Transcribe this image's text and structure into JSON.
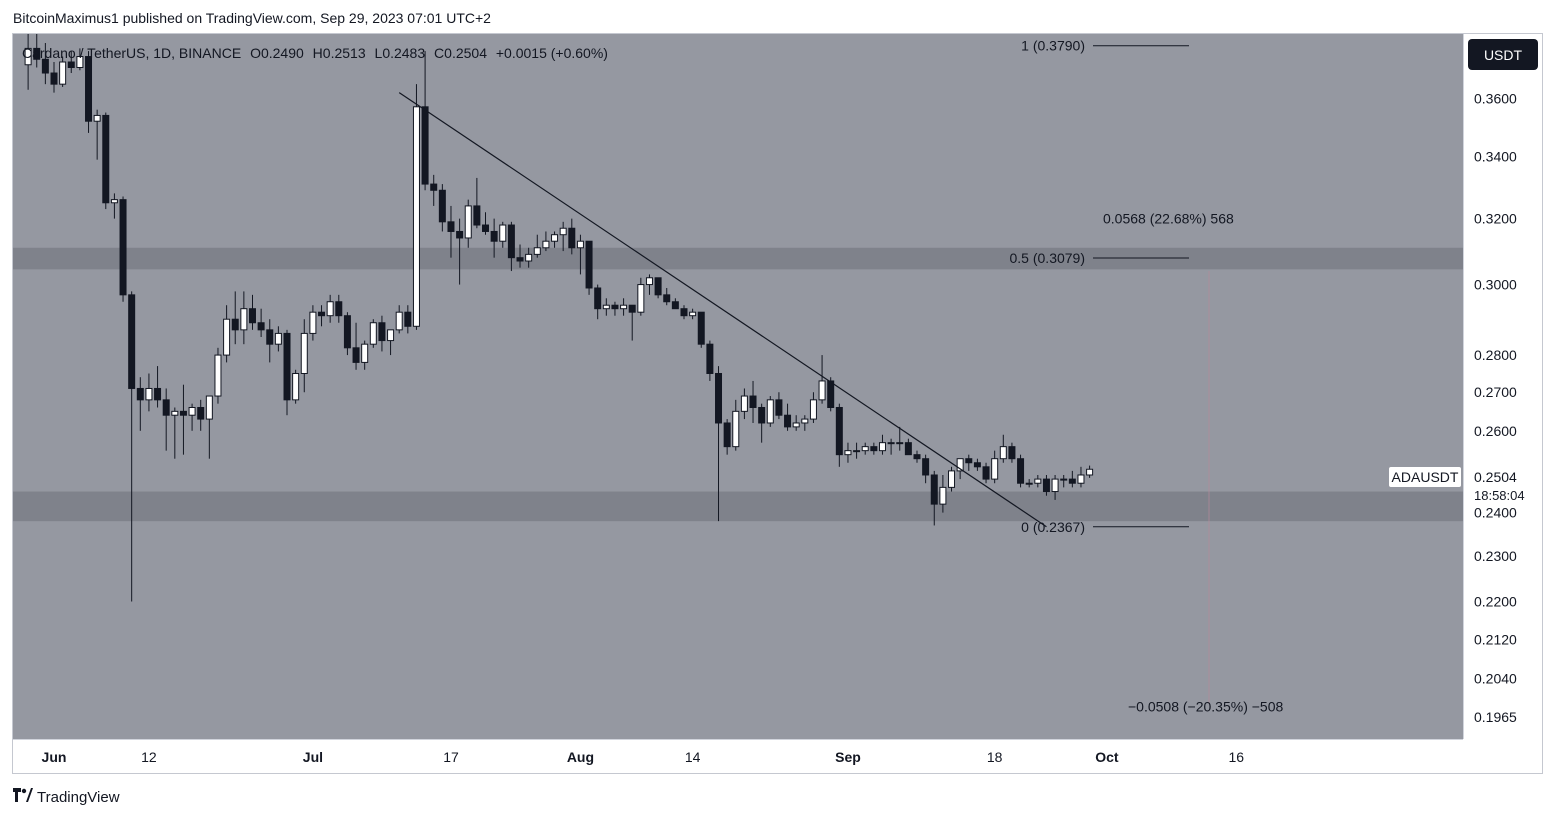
{
  "header": {
    "publisher_line": "BitcoinMaximus1 published on TradingView.com, Sep 29, 2023 07:01 UTC+2"
  },
  "legend": {
    "symbol": "Cardano / TetherUS, 1D, BINANCE",
    "open_label": "O",
    "open": "0.2490",
    "high_label": "H",
    "high": "0.2513",
    "low_label": "L",
    "low": "0.2483",
    "close_label": "C",
    "close": "0.2504",
    "change": "+0.0015 (+0.60%)"
  },
  "currency_button": "USDT",
  "last_price": {
    "symbol": "ADAUSDT",
    "value": "0.2504",
    "countdown": "18:58:04"
  },
  "footer": {
    "brand": "TradingView",
    "logo_icon": "tradingview-logo-icon"
  },
  "colors": {
    "plot_bg": "#9598a1",
    "bull": "#ffffff",
    "bear": "#131722",
    "zone": "#7b7e87"
  },
  "chart_data": {
    "type": "candlestick",
    "title": "Cardano / TetherUS, 1D, BINANCE",
    "xlabel": "",
    "ylabel": "",
    "ylim": [
      0.1942,
      0.38
    ],
    "y_scale": "log",
    "y_ticks": [
      "0.3600",
      "0.3400",
      "0.3200",
      "0.3000",
      "0.2800",
      "0.2700",
      "0.2600",
      "0.2400",
      "0.2300",
      "0.2200",
      "0.2120",
      "0.2040",
      "0.1965"
    ],
    "x_ticks": [
      {
        "label": "Jun",
        "date": "2023-06-01"
      },
      {
        "label": "12",
        "date": "2023-06-12"
      },
      {
        "label": "Jul",
        "date": "2023-07-01"
      },
      {
        "label": "17",
        "date": "2023-07-17"
      },
      {
        "label": "Aug",
        "date": "2023-08-01"
      },
      {
        "label": "14",
        "date": "2023-08-14"
      },
      {
        "label": "Sep",
        "date": "2023-09-01"
      },
      {
        "label": "18",
        "date": "2023-09-18"
      },
      {
        "label": "Oct",
        "date": "2023-10-01"
      },
      {
        "label": "16",
        "date": "2023-10-16"
      }
    ],
    "support_zones": [
      {
        "low": 0.3045,
        "high": 0.311
      },
      {
        "low": 0.238,
        "high": 0.245
      }
    ],
    "trendline": {
      "start": {
        "date": "2023-07-11",
        "price": 0.362
      },
      "end": {
        "date": "2023-09-24",
        "price": 0.2367
      }
    },
    "fib_levels": [
      {
        "label": "1 (0.3790)",
        "price": 0.379
      },
      {
        "label": "0.5 (0.3079)",
        "price": 0.3079
      },
      {
        "label": "0 (0.2367)",
        "price": 0.2367
      }
    ],
    "measurements": [
      {
        "label": "0.0568 (22.68%) 568",
        "price": 0.32
      },
      {
        "label": "−0.0508 (−20.35%) −508",
        "price": 0.1985
      }
    ],
    "candles": [
      [
        "2023-05-29",
        0.372,
        0.384,
        0.363,
        0.378
      ],
      [
        "2023-05-30",
        0.378,
        0.384,
        0.371,
        0.374
      ],
      [
        "2023-05-31",
        0.374,
        0.38,
        0.365,
        0.369
      ],
      [
        "2023-06-01",
        0.369,
        0.373,
        0.362,
        0.365
      ],
      [
        "2023-06-02",
        0.365,
        0.375,
        0.364,
        0.373
      ],
      [
        "2023-06-03",
        0.373,
        0.377,
        0.369,
        0.371
      ],
      [
        "2023-06-04",
        0.371,
        0.378,
        0.37,
        0.375
      ],
      [
        "2023-06-05",
        0.375,
        0.377,
        0.348,
        0.352
      ],
      [
        "2023-06-06",
        0.352,
        0.356,
        0.339,
        0.354
      ],
      [
        "2023-06-07",
        0.354,
        0.355,
        0.323,
        0.325
      ],
      [
        "2023-06-08",
        0.325,
        0.328,
        0.32,
        0.326
      ],
      [
        "2023-06-09",
        0.326,
        0.327,
        0.295,
        0.297
      ],
      [
        "2023-06-10",
        0.297,
        0.298,
        0.22,
        0.271
      ],
      [
        "2023-06-11",
        0.271,
        0.274,
        0.26,
        0.268
      ],
      [
        "2023-06-12",
        0.268,
        0.275,
        0.265,
        0.271
      ],
      [
        "2023-06-13",
        0.271,
        0.277,
        0.266,
        0.268
      ],
      [
        "2023-06-14",
        0.268,
        0.271,
        0.255,
        0.264
      ],
      [
        "2023-06-15",
        0.264,
        0.266,
        0.253,
        0.265
      ],
      [
        "2023-06-16",
        0.265,
        0.272,
        0.254,
        0.264
      ],
      [
        "2023-06-17",
        0.264,
        0.267,
        0.26,
        0.266
      ],
      [
        "2023-06-18",
        0.266,
        0.268,
        0.26,
        0.263
      ],
      [
        "2023-06-19",
        0.263,
        0.269,
        0.253,
        0.269
      ],
      [
        "2023-06-20",
        0.269,
        0.282,
        0.267,
        0.28
      ],
      [
        "2023-06-21",
        0.28,
        0.294,
        0.278,
        0.29
      ],
      [
        "2023-06-22",
        0.29,
        0.298,
        0.283,
        0.287
      ],
      [
        "2023-06-23",
        0.287,
        0.298,
        0.283,
        0.293
      ],
      [
        "2023-06-24",
        0.293,
        0.297,
        0.287,
        0.289
      ],
      [
        "2023-06-25",
        0.289,
        0.293,
        0.285,
        0.287
      ],
      [
        "2023-06-26",
        0.287,
        0.29,
        0.278,
        0.283
      ],
      [
        "2023-06-27",
        0.283,
        0.288,
        0.281,
        0.286
      ],
      [
        "2023-06-28",
        0.286,
        0.287,
        0.264,
        0.268
      ],
      [
        "2023-06-29",
        0.268,
        0.276,
        0.267,
        0.275
      ],
      [
        "2023-06-30",
        0.275,
        0.29,
        0.27,
        0.286
      ],
      [
        "2023-07-01",
        0.286,
        0.294,
        0.284,
        0.292
      ],
      [
        "2023-07-02",
        0.292,
        0.294,
        0.288,
        0.291
      ],
      [
        "2023-07-03",
        0.291,
        0.297,
        0.289,
        0.295
      ],
      [
        "2023-07-04",
        0.295,
        0.297,
        0.289,
        0.291
      ],
      [
        "2023-07-05",
        0.291,
        0.292,
        0.28,
        0.282
      ],
      [
        "2023-07-06",
        0.282,
        0.289,
        0.276,
        0.278
      ],
      [
        "2023-07-07",
        0.278,
        0.284,
        0.276,
        0.283
      ],
      [
        "2023-07-08",
        0.283,
        0.29,
        0.282,
        0.289
      ],
      [
        "2023-07-09",
        0.289,
        0.291,
        0.281,
        0.284
      ],
      [
        "2023-07-10",
        0.284,
        0.287,
        0.28,
        0.287
      ],
      [
        "2023-07-11",
        0.287,
        0.294,
        0.286,
        0.292
      ],
      [
        "2023-07-12",
        0.292,
        0.294,
        0.286,
        0.288
      ],
      [
        "2023-07-13",
        0.288,
        0.365,
        0.287,
        0.357
      ],
      [
        "2023-07-14",
        0.357,
        0.377,
        0.329,
        0.331
      ],
      [
        "2023-07-15",
        0.331,
        0.334,
        0.324,
        0.329
      ],
      [
        "2023-07-16",
        0.329,
        0.331,
        0.316,
        0.319
      ],
      [
        "2023-07-17",
        0.319,
        0.324,
        0.308,
        0.316
      ],
      [
        "2023-07-18",
        0.316,
        0.32,
        0.3,
        0.314
      ],
      [
        "2023-07-19",
        0.314,
        0.326,
        0.311,
        0.324
      ],
      [
        "2023-07-20",
        0.324,
        0.333,
        0.317,
        0.318
      ],
      [
        "2023-07-21",
        0.318,
        0.322,
        0.315,
        0.316
      ],
      [
        "2023-07-22",
        0.316,
        0.32,
        0.308,
        0.313
      ],
      [
        "2023-07-23",
        0.313,
        0.319,
        0.311,
        0.318
      ],
      [
        "2023-07-24",
        0.318,
        0.319,
        0.304,
        0.308
      ],
      [
        "2023-07-25",
        0.308,
        0.312,
        0.305,
        0.307
      ],
      [
        "2023-07-26",
        0.307,
        0.311,
        0.305,
        0.309
      ],
      [
        "2023-07-27",
        0.309,
        0.315,
        0.308,
        0.311
      ],
      [
        "2023-07-28",
        0.311,
        0.316,
        0.31,
        0.313
      ],
      [
        "2023-07-29",
        0.313,
        0.316,
        0.311,
        0.315
      ],
      [
        "2023-07-30",
        0.315,
        0.319,
        0.31,
        0.317
      ],
      [
        "2023-07-31",
        0.317,
        0.32,
        0.309,
        0.311
      ],
      [
        "2023-08-01",
        0.311,
        0.315,
        0.303,
        0.313
      ],
      [
        "2023-08-02",
        0.313,
        0.313,
        0.297,
        0.299
      ],
      [
        "2023-08-03",
        0.299,
        0.3,
        0.29,
        0.293
      ],
      [
        "2023-08-04",
        0.293,
        0.296,
        0.291,
        0.294
      ],
      [
        "2023-08-05",
        0.294,
        0.295,
        0.291,
        0.293
      ],
      [
        "2023-08-06",
        0.293,
        0.296,
        0.291,
        0.294
      ],
      [
        "2023-08-07",
        0.294,
        0.294,
        0.284,
        0.292
      ],
      [
        "2023-08-08",
        0.292,
        0.302,
        0.291,
        0.3
      ],
      [
        "2023-08-09",
        0.3,
        0.303,
        0.297,
        0.302
      ],
      [
        "2023-08-10",
        0.302,
        0.302,
        0.296,
        0.297
      ],
      [
        "2023-08-11",
        0.297,
        0.299,
        0.294,
        0.295
      ],
      [
        "2023-08-12",
        0.295,
        0.296,
        0.293,
        0.293
      ],
      [
        "2023-08-13",
        0.293,
        0.294,
        0.29,
        0.291
      ],
      [
        "2023-08-14",
        0.291,
        0.293,
        0.29,
        0.292
      ],
      [
        "2023-08-15",
        0.292,
        0.292,
        0.282,
        0.283
      ],
      [
        "2023-08-16",
        0.283,
        0.284,
        0.273,
        0.275
      ],
      [
        "2023-08-17",
        0.275,
        0.277,
        0.238,
        0.262
      ],
      [
        "2023-08-18",
        0.262,
        0.263,
        0.254,
        0.256
      ],
      [
        "2023-08-19",
        0.256,
        0.268,
        0.255,
        0.265
      ],
      [
        "2023-08-20",
        0.265,
        0.271,
        0.263,
        0.269
      ],
      [
        "2023-08-21",
        0.269,
        0.273,
        0.262,
        0.266
      ],
      [
        "2023-08-22",
        0.266,
        0.267,
        0.257,
        0.262
      ],
      [
        "2023-08-23",
        0.262,
        0.269,
        0.261,
        0.268
      ],
      [
        "2023-08-24",
        0.268,
        0.27,
        0.263,
        0.264
      ],
      [
        "2023-08-25",
        0.264,
        0.267,
        0.26,
        0.261
      ],
      [
        "2023-08-26",
        0.261,
        0.264,
        0.26,
        0.262
      ],
      [
        "2023-08-27",
        0.262,
        0.264,
        0.26,
        0.263
      ],
      [
        "2023-08-28",
        0.263,
        0.27,
        0.262,
        0.268
      ],
      [
        "2023-08-29",
        0.268,
        0.28,
        0.267,
        0.273
      ],
      [
        "2023-08-30",
        0.273,
        0.274,
        0.265,
        0.266
      ],
      [
        "2023-08-31",
        0.266,
        0.267,
        0.251,
        0.254
      ],
      [
        "2023-09-01",
        0.254,
        0.257,
        0.252,
        0.255
      ],
      [
        "2023-09-02",
        0.255,
        0.257,
        0.253,
        0.255
      ],
      [
        "2023-09-03",
        0.255,
        0.257,
        0.254,
        0.256
      ],
      [
        "2023-09-04",
        0.256,
        0.257,
        0.254,
        0.255
      ],
      [
        "2023-09-05",
        0.255,
        0.259,
        0.254,
        0.257
      ],
      [
        "2023-09-06",
        0.257,
        0.258,
        0.254,
        0.257
      ],
      [
        "2023-09-07",
        0.257,
        0.261,
        0.255,
        0.257
      ],
      [
        "2023-09-08",
        0.257,
        0.258,
        0.254,
        0.254
      ],
      [
        "2023-09-09",
        0.254,
        0.255,
        0.252,
        0.253
      ],
      [
        "2023-09-10",
        0.253,
        0.254,
        0.247,
        0.249
      ],
      [
        "2023-09-11",
        0.249,
        0.25,
        0.237,
        0.242
      ],
      [
        "2023-09-12",
        0.242,
        0.249,
        0.24,
        0.246
      ],
      [
        "2023-09-13",
        0.246,
        0.251,
        0.245,
        0.25
      ],
      [
        "2023-09-14",
        0.25,
        0.253,
        0.248,
        0.253
      ],
      [
        "2023-09-15",
        0.253,
        0.254,
        0.25,
        0.252
      ],
      [
        "2023-09-16",
        0.252,
        0.253,
        0.25,
        0.251
      ],
      [
        "2023-09-17",
        0.251,
        0.252,
        0.247,
        0.248
      ],
      [
        "2023-09-18",
        0.248,
        0.255,
        0.247,
        0.253
      ],
      [
        "2023-09-19",
        0.253,
        0.259,
        0.252,
        0.256
      ],
      [
        "2023-09-20",
        0.256,
        0.257,
        0.252,
        0.253
      ],
      [
        "2023-09-21",
        0.253,
        0.254,
        0.246,
        0.247
      ],
      [
        "2023-09-22",
        0.247,
        0.248,
        0.246,
        0.247
      ],
      [
        "2023-09-23",
        0.247,
        0.249,
        0.246,
        0.248
      ],
      [
        "2023-09-24",
        0.248,
        0.249,
        0.244,
        0.245
      ],
      [
        "2023-09-25",
        0.245,
        0.249,
        0.243,
        0.248
      ],
      [
        "2023-09-26",
        0.248,
        0.249,
        0.246,
        0.248
      ],
      [
        "2023-09-27",
        0.248,
        0.25,
        0.246,
        0.247
      ],
      [
        "2023-09-28",
        0.247,
        0.251,
        0.246,
        0.249
      ],
      [
        "2023-09-29",
        0.249,
        0.2513,
        0.2483,
        0.2504
      ]
    ]
  }
}
